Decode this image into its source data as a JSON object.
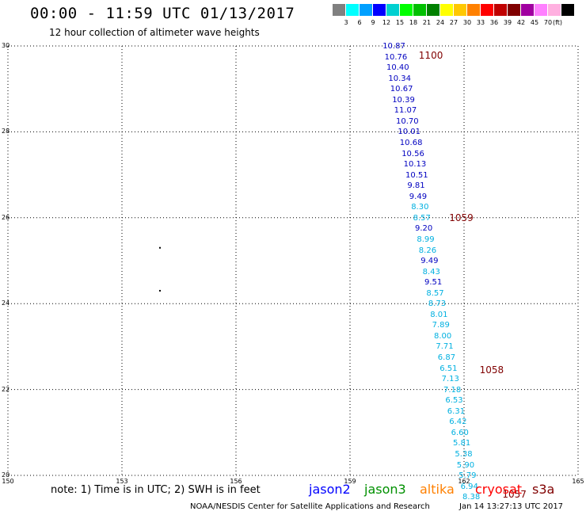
{
  "header": {
    "title": "00:00 - 11:59 UTC 01/13/2017",
    "subtitle": "12 hour collection of altimeter wave heights"
  },
  "legend": {
    "swatches": [
      "#808080",
      "#00ffff",
      "#00a0ff",
      "#0000ff",
      "#00d0d0",
      "#00ff00",
      "#00c000",
      "#008000",
      "#ffff00",
      "#ffc800",
      "#ff8000",
      "#ff0000",
      "#c00000",
      "#800000",
      "#a000a0",
      "#ff80ff",
      "#ffb0e0",
      "#000000"
    ],
    "ticks": [
      "3",
      "6",
      "9",
      "12",
      "15",
      "18",
      "21",
      "24",
      "27",
      "30",
      "33",
      "36",
      "39",
      "42",
      "45",
      "70"
    ],
    "unit": "(ft)"
  },
  "map": {
    "x_ticks": [
      "150",
      "153",
      "156",
      "159",
      "162",
      "165"
    ],
    "y_ticks": [
      "30",
      "28",
      "26",
      "24",
      "22",
      "20"
    ],
    "lon_range": [
      150,
      165
    ],
    "lat_range": [
      20,
      30
    ],
    "grid": "dotted",
    "land_dots": [
      {
        "lon": 154.0,
        "lat": 25.3
      },
      {
        "lon": 154.0,
        "lat": 24.3
      }
    ],
    "observations": [
      {
        "lon": 160.15,
        "lat": 29.98,
        "value": "10.87",
        "color": "#0000c0"
      },
      {
        "lon": 160.2,
        "lat": 29.73,
        "value": "10.76",
        "color": "#0000c0"
      },
      {
        "lon": 160.25,
        "lat": 29.48,
        "value": "10.40",
        "color": "#0000c0"
      },
      {
        "lon": 160.3,
        "lat": 29.23,
        "value": "10.34",
        "color": "#0000c0"
      },
      {
        "lon": 160.35,
        "lat": 28.98,
        "value": "10.67",
        "color": "#0000c0"
      },
      {
        "lon": 160.4,
        "lat": 28.73,
        "value": "10.39",
        "color": "#0000c0"
      },
      {
        "lon": 160.45,
        "lat": 28.48,
        "value": "11.07",
        "color": "#0000c0"
      },
      {
        "lon": 160.5,
        "lat": 28.23,
        "value": "10.70",
        "color": "#0000c0"
      },
      {
        "lon": 160.55,
        "lat": 27.98,
        "value": "10.01",
        "color": "#0000c0"
      },
      {
        "lon": 160.6,
        "lat": 27.73,
        "value": "10.68",
        "color": "#0000c0"
      },
      {
        "lon": 160.65,
        "lat": 27.48,
        "value": "10.56",
        "color": "#0000c0"
      },
      {
        "lon": 160.7,
        "lat": 27.23,
        "value": "10.13",
        "color": "#0000c0"
      },
      {
        "lon": 160.75,
        "lat": 26.98,
        "value": "10.51",
        "color": "#0000c0"
      },
      {
        "lon": 160.8,
        "lat": 26.73,
        "value": "9.81",
        "color": "#0000c0"
      },
      {
        "lon": 160.85,
        "lat": 26.48,
        "value": "9.49",
        "color": "#0000c0"
      },
      {
        "lon": 160.9,
        "lat": 26.23,
        "value": "8.30",
        "color": "#00b0e0"
      },
      {
        "lon": 160.95,
        "lat": 25.98,
        "value": "8.57",
        "color": "#00b0e0"
      },
      {
        "lon": 161.0,
        "lat": 25.73,
        "value": "9.20",
        "color": "#0000c0"
      },
      {
        "lon": 161.05,
        "lat": 25.48,
        "value": "8.99",
        "color": "#00b0e0"
      },
      {
        "lon": 161.1,
        "lat": 25.23,
        "value": "8.26",
        "color": "#00b0e0"
      },
      {
        "lon": 161.15,
        "lat": 24.98,
        "value": "9.49",
        "color": "#0000c0"
      },
      {
        "lon": 161.2,
        "lat": 24.73,
        "value": "8.43",
        "color": "#00b0e0"
      },
      {
        "lon": 161.25,
        "lat": 24.48,
        "value": "9.51",
        "color": "#0000c0"
      },
      {
        "lon": 161.3,
        "lat": 24.23,
        "value": "8.57",
        "color": "#00b0e0"
      },
      {
        "lon": 161.35,
        "lat": 23.98,
        "value": "8.73",
        "color": "#00b0e0"
      },
      {
        "lon": 161.4,
        "lat": 23.73,
        "value": "8.01",
        "color": "#00b0e0"
      },
      {
        "lon": 161.45,
        "lat": 23.48,
        "value": "7.89",
        "color": "#00b0e0"
      },
      {
        "lon": 161.5,
        "lat": 23.23,
        "value": "8.00",
        "color": "#00b0e0"
      },
      {
        "lon": 161.55,
        "lat": 22.98,
        "value": "7.71",
        "color": "#00b0e0"
      },
      {
        "lon": 161.6,
        "lat": 22.73,
        "value": "6.87",
        "color": "#00b0e0"
      },
      {
        "lon": 161.65,
        "lat": 22.48,
        "value": "6.51",
        "color": "#00b0e0"
      },
      {
        "lon": 161.7,
        "lat": 22.23,
        "value": "7.13",
        "color": "#00b0e0"
      },
      {
        "lon": 161.75,
        "lat": 21.98,
        "value": "7.18",
        "color": "#00b0e0"
      },
      {
        "lon": 161.8,
        "lat": 21.73,
        "value": "6.53",
        "color": "#00b0e0"
      },
      {
        "lon": 161.85,
        "lat": 21.48,
        "value": "6.31",
        "color": "#00b0e0"
      },
      {
        "lon": 161.9,
        "lat": 21.23,
        "value": "6.42",
        "color": "#00b0e0"
      },
      {
        "lon": 161.95,
        "lat": 20.98,
        "value": "6.60",
        "color": "#00b0e0"
      },
      {
        "lon": 162.0,
        "lat": 20.73,
        "value": "5.81",
        "color": "#00b0e0"
      },
      {
        "lon": 162.05,
        "lat": 20.48,
        "value": "5.38",
        "color": "#00b0e0"
      },
      {
        "lon": 162.1,
        "lat": 20.23,
        "value": "5.90",
        "color": "#00b0e0"
      },
      {
        "lon": 162.15,
        "lat": 19.98,
        "value": "5.79",
        "color": "#00b0e0"
      },
      {
        "lon": 162.2,
        "lat": 19.73,
        "value": "6.94",
        "color": "#00b0e0"
      },
      {
        "lon": 162.25,
        "lat": 19.48,
        "value": "8.38",
        "color": "#00b0e0"
      }
    ],
    "pass_labels": [
      {
        "lon": 161.1,
        "lat": 29.78,
        "text": "1100"
      },
      {
        "lon": 161.9,
        "lat": 26.0,
        "text": "1059"
      },
      {
        "lon": 162.7,
        "lat": 22.45,
        "text": "1058"
      },
      {
        "lon": 163.3,
        "lat": 19.55,
        "text": "1057"
      }
    ]
  },
  "footer": {
    "note": "note: 1) Time is in UTC; 2) SWH is in feet",
    "satellites": [
      {
        "name": "jason2",
        "color": "#0000ff"
      },
      {
        "name": "jason3",
        "color": "#009000"
      },
      {
        "name": "altika",
        "color": "#ff8000"
      },
      {
        "name": "cryosat",
        "color": "#ff0000"
      },
      {
        "name": "s3a",
        "color": "#800000"
      }
    ],
    "credit": "NOAA/NESDIS Center for Satellite Applications and Research",
    "timestamp": "Jan 14 13:27:13 UTC 2017"
  }
}
